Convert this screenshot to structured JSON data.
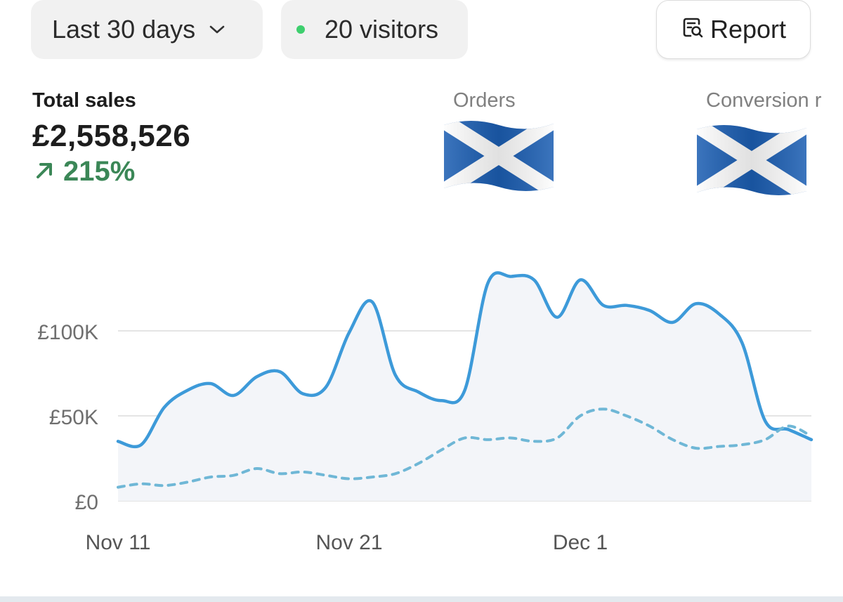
{
  "toolbar": {
    "date_range": "Last 30 days",
    "visitors": "20 visitors",
    "visitors_dot_color": "#3ecf6e",
    "report": "Report",
    "icons": [
      "chevron-down-icon",
      "report-search-icon"
    ]
  },
  "metrics": {
    "total_sales": {
      "label": "Total sales",
      "value": "£2,558,526",
      "change": "215%",
      "trend_icon": "arrow-up-right-icon",
      "trend_color": "#3b8757"
    },
    "orders": {
      "label": "Orders",
      "overlay": "scotland-flag-emoji"
    },
    "conversion": {
      "label": "Conversion r",
      "overlay": "scotland-flag-emoji"
    }
  },
  "chart_data": {
    "type": "area",
    "x_tick_labels": [
      "Nov 11",
      "Nov 21",
      "Dec 1"
    ],
    "y_tick_labels": [
      "£0",
      "£50K",
      "£100K"
    ],
    "ylim": [
      0,
      150000
    ],
    "grid": true,
    "series": [
      {
        "style": "solid",
        "color": "#3d9ad9",
        "x": [
          0,
          1,
          2,
          3,
          4,
          5,
          6,
          7,
          8,
          9,
          10,
          11,
          12,
          13,
          14,
          15,
          16,
          17,
          18,
          19,
          20,
          21,
          22,
          23,
          24,
          25,
          26,
          27,
          28,
          29,
          30
        ],
        "values": [
          35000,
          33000,
          55000,
          65000,
          69000,
          62000,
          73000,
          76000,
          63000,
          67000,
          99000,
          117000,
          74000,
          64000,
          59000,
          65000,
          128000,
          132000,
          130000,
          108000,
          130000,
          115000,
          115000,
          112000,
          105000,
          116000,
          110000,
          93000,
          47000,
          42000,
          36000
        ]
      },
      {
        "style": "dashed",
        "color": "#6fb7d6",
        "x": [
          0,
          1,
          2,
          3,
          4,
          5,
          6,
          7,
          8,
          9,
          10,
          11,
          12,
          13,
          14,
          15,
          16,
          17,
          18,
          19,
          20,
          21,
          22,
          23,
          24,
          25,
          26,
          27,
          28,
          29,
          30
        ],
        "values": [
          8000,
          10000,
          9000,
          11000,
          14000,
          15000,
          19000,
          16000,
          17000,
          15000,
          13000,
          14000,
          16000,
          22000,
          30000,
          37000,
          36000,
          37000,
          35000,
          37000,
          50000,
          54000,
          50000,
          44000,
          36000,
          31000,
          32000,
          33000,
          36000,
          44000,
          38000
        ]
      }
    ]
  }
}
